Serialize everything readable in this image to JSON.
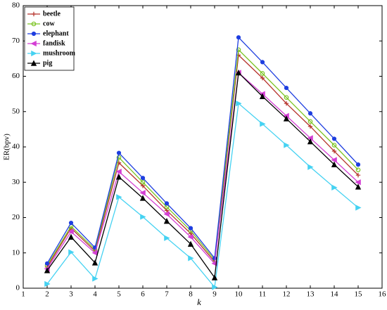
{
  "chart_data": {
    "type": "line",
    "xlabel": "k",
    "ylabel": "ER(bpv)",
    "x": [
      2,
      3,
      4,
      5,
      6,
      7,
      8,
      9,
      10,
      11,
      12,
      13,
      14,
      15
    ],
    "xlim": [
      1,
      16
    ],
    "xticks": [
      1,
      2,
      3,
      4,
      5,
      6,
      7,
      8,
      9,
      10,
      11,
      12,
      13,
      14,
      15,
      16
    ],
    "ylim": [
      0,
      80
    ],
    "yticks": [
      0,
      10,
      20,
      30,
      40,
      50,
      60,
      70,
      80
    ],
    "legend": "upper-left",
    "series": [
      {
        "name": "beetle",
        "color": "#b5322a",
        "marker": "plus",
        "values": [
          6,
          17,
          10.5,
          35.5,
          29,
          22,
          15.5,
          7.5,
          66,
          59.5,
          52.3,
          45.8,
          38.8,
          32
        ]
      },
      {
        "name": "cow",
        "color": "#7cc424",
        "marker": "circle-open",
        "values": [
          6.5,
          17.5,
          11,
          37,
          30,
          23,
          16.3,
          8,
          67.5,
          60.8,
          54,
          47.2,
          40.5,
          33.5
        ]
      },
      {
        "name": "elephant",
        "color": "#1e3ee0",
        "marker": "circle",
        "values": [
          7,
          18.5,
          11.5,
          38.3,
          31.2,
          24,
          17,
          8.5,
          71,
          64,
          56.7,
          49.5,
          42.3,
          35
        ]
      },
      {
        "name": "fandisk",
        "color": "#d43fd4",
        "marker": "tri-left",
        "values": [
          5.5,
          16,
          10,
          33,
          27,
          21,
          14.5,
          7,
          61,
          55,
          48.8,
          42.5,
          36.3,
          30
        ]
      },
      {
        "name": "mushroom",
        "color": "#45d2f2",
        "marker": "tri-right",
        "values": [
          1.2,
          10.2,
          2.7,
          25.8,
          20.2,
          14.2,
          8.5,
          0.3,
          52.3,
          46.5,
          40.5,
          34.3,
          28.5,
          22.8
        ]
      },
      {
        "name": "pig",
        "color": "#000000",
        "marker": "tri-up",
        "values": [
          5,
          14.5,
          7.2,
          31.5,
          25.5,
          19,
          12.5,
          3,
          61,
          54.3,
          48,
          41.5,
          35,
          28.7
        ]
      }
    ]
  }
}
